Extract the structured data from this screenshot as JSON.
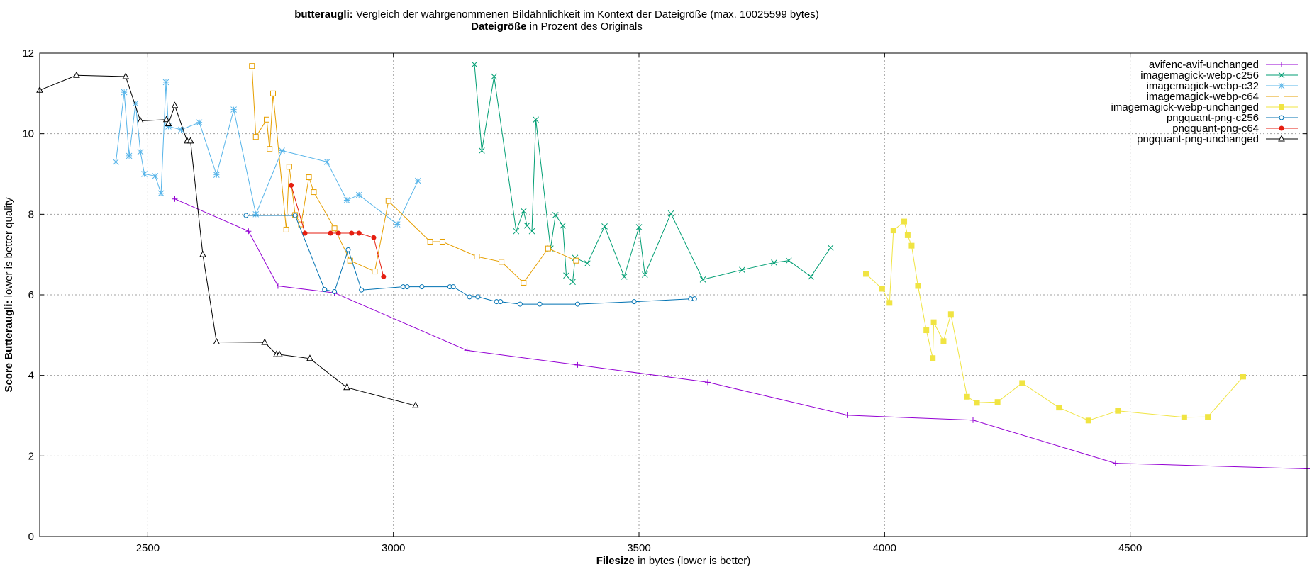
{
  "titles": {
    "line1_bold": "butteraugli:",
    "line1_rest": " Vergleich der wahrgenommenen Bildähnlichkeit im Kontext der Dateigröße (max. 10025599 bytes)",
    "line2_bold": "Dateigröße",
    "line2_rest": " in Prozent des Originals"
  },
  "axes": {
    "xlabel_bold": "Filesize",
    "xlabel_rest": " in bytes (lower is better)",
    "ylabel_bold": "Score Butteraugli:",
    "ylabel_rest": " lower is better quality"
  },
  "chart_data": {
    "type": "line",
    "title": "butteraugli: Vergleich der wahrgenommenen Bildähnlichkeit im Kontext der Dateigröße (max. 10025599 bytes)",
    "subtitle": "Dateigröße in Prozent des Originals",
    "xlabel": "Filesize in bytes (lower is better)",
    "ylabel": "Score Butteraugli: lower is better quality",
    "xlim": [
      2280,
      4860
    ],
    "ylim": [
      0,
      12
    ],
    "xticks": [
      2500,
      3000,
      3500,
      4000,
      4500
    ],
    "yticks": [
      0,
      2,
      4,
      6,
      8,
      10,
      12
    ],
    "grid": true,
    "legend_position": "top-right",
    "series": [
      {
        "name": "avifenc-avif-unchanged",
        "color": "#9400d3",
        "marker": "plus",
        "points": [
          [
            2555,
            8.38
          ],
          [
            2705,
            7.58
          ],
          [
            2765,
            6.22
          ],
          [
            2880,
            6.05
          ],
          [
            3150,
            4.62
          ],
          [
            3375,
            4.26
          ],
          [
            3640,
            3.83
          ],
          [
            3925,
            3.01
          ],
          [
            4180,
            2.89
          ],
          [
            4470,
            1.82
          ],
          [
            4860,
            1.68
          ]
        ]
      },
      {
        "name": "imagemagick-webp-c256",
        "color": "#009e73",
        "marker": "cross",
        "points": [
          [
            3165,
            11.72
          ],
          [
            3180,
            9.58
          ],
          [
            3205,
            11.42
          ],
          [
            3250,
            7.58
          ],
          [
            3265,
            8.08
          ],
          [
            3272,
            7.72
          ],
          [
            3282,
            7.58
          ],
          [
            3290,
            10.35
          ],
          [
            3320,
            7.15
          ],
          [
            3330,
            7.98
          ],
          [
            3345,
            7.72
          ],
          [
            3352,
            6.48
          ],
          [
            3365,
            6.32
          ],
          [
            3370,
            6.92
          ],
          [
            3395,
            6.78
          ],
          [
            3430,
            7.7
          ],
          [
            3470,
            6.45
          ],
          [
            3500,
            7.68
          ],
          [
            3512,
            6.5
          ],
          [
            3565,
            8.02
          ],
          [
            3630,
            6.38
          ],
          [
            3710,
            6.62
          ],
          [
            3775,
            6.8
          ],
          [
            3805,
            6.85
          ],
          [
            3850,
            6.45
          ],
          [
            3890,
            7.17
          ]
        ]
      },
      {
        "name": "imagemagick-webp-c32",
        "color": "#56b4e9",
        "marker": "star",
        "points": [
          [
            2435,
            9.3
          ],
          [
            2452,
            11.03
          ],
          [
            2462,
            9.45
          ],
          [
            2475,
            10.75
          ],
          [
            2485,
            9.55
          ],
          [
            2493,
            9.0
          ],
          [
            2515,
            8.95
          ],
          [
            2527,
            8.52
          ],
          [
            2537,
            11.28
          ],
          [
            2542,
            10.18
          ],
          [
            2568,
            10.1
          ],
          [
            2605,
            10.28
          ],
          [
            2640,
            8.98
          ],
          [
            2675,
            10.6
          ],
          [
            2720,
            8.0
          ],
          [
            2773,
            9.58
          ],
          [
            2865,
            9.3
          ],
          [
            2905,
            8.35
          ],
          [
            2930,
            8.48
          ],
          [
            3008,
            7.75
          ],
          [
            3050,
            8.83
          ]
        ]
      },
      {
        "name": "imagemagick-webp-c64",
        "color": "#e69f00",
        "marker": "square",
        "points": [
          [
            2712,
            11.68
          ],
          [
            2720,
            9.92
          ],
          [
            2742,
            10.35
          ],
          [
            2748,
            9.62
          ],
          [
            2755,
            11.0
          ],
          [
            2782,
            7.62
          ],
          [
            2788,
            9.18
          ],
          [
            2800,
            7.98
          ],
          [
            2812,
            7.75
          ],
          [
            2828,
            8.92
          ],
          [
            2838,
            8.55
          ],
          [
            2880,
            7.65
          ],
          [
            2912,
            6.85
          ],
          [
            2962,
            6.58
          ],
          [
            2990,
            8.33
          ],
          [
            3075,
            7.32
          ],
          [
            3100,
            7.32
          ],
          [
            3170,
            6.95
          ],
          [
            3220,
            6.82
          ],
          [
            3265,
            6.3
          ],
          [
            3315,
            7.15
          ],
          [
            3372,
            6.85
          ]
        ]
      },
      {
        "name": "imagemagick-webp-unchanged",
        "color": "#f0e442",
        "marker": "filled-square",
        "points": [
          [
            3962,
            6.52
          ],
          [
            3995,
            6.15
          ],
          [
            4010,
            5.8
          ],
          [
            4018,
            7.6
          ],
          [
            4040,
            7.82
          ],
          [
            4047,
            7.48
          ],
          [
            4055,
            7.22
          ],
          [
            4068,
            6.22
          ],
          [
            4085,
            5.12
          ],
          [
            4098,
            4.43
          ],
          [
            4100,
            5.32
          ],
          [
            4120,
            4.85
          ],
          [
            4135,
            5.52
          ],
          [
            4168,
            3.47
          ],
          [
            4188,
            3.32
          ],
          [
            4230,
            3.34
          ],
          [
            4280,
            3.81
          ],
          [
            4355,
            3.2
          ],
          [
            4415,
            2.88
          ],
          [
            4475,
            3.12
          ],
          [
            4610,
            2.96
          ],
          [
            4658,
            2.97
          ],
          [
            4730,
            3.97
          ]
        ]
      },
      {
        "name": "pngquant-png-c256",
        "color": "#0072b2",
        "marker": "circle",
        "points": [
          [
            2700,
            7.97
          ],
          [
            2800,
            7.97
          ],
          [
            2860,
            6.13
          ],
          [
            2880,
            6.08
          ],
          [
            2908,
            7.12
          ],
          [
            2935,
            6.12
          ],
          [
            3020,
            6.2
          ],
          [
            3028,
            6.2
          ],
          [
            3058,
            6.2
          ],
          [
            3115,
            6.2
          ],
          [
            3122,
            6.2
          ],
          [
            3155,
            5.95
          ],
          [
            3172,
            5.95
          ],
          [
            3210,
            5.83
          ],
          [
            3218,
            5.83
          ],
          [
            3258,
            5.77
          ],
          [
            3298,
            5.77
          ],
          [
            3375,
            5.77
          ],
          [
            3490,
            5.83
          ],
          [
            3605,
            5.9
          ],
          [
            3613,
            5.9
          ]
        ]
      },
      {
        "name": "pngquant-png-c64",
        "color": "#e51e10",
        "marker": "filled-circle",
        "points": [
          [
            2792,
            8.72
          ],
          [
            2820,
            7.53
          ],
          [
            2872,
            7.53
          ],
          [
            2888,
            7.53
          ],
          [
            2915,
            7.53
          ],
          [
            2930,
            7.53
          ],
          [
            2960,
            7.42
          ],
          [
            2980,
            6.45
          ]
        ]
      },
      {
        "name": "pngquant-png-unchanged",
        "color": "#000000",
        "marker": "triangle",
        "points": [
          [
            2280,
            11.08
          ],
          [
            2355,
            11.45
          ],
          [
            2455,
            11.42
          ],
          [
            2485,
            10.32
          ],
          [
            2538,
            10.35
          ],
          [
            2542,
            10.25
          ],
          [
            2555,
            10.7
          ],
          [
            2580,
            9.82
          ],
          [
            2587,
            9.82
          ],
          [
            2612,
            7.0
          ],
          [
            2640,
            4.83
          ],
          [
            2738,
            4.82
          ],
          [
            2762,
            4.52
          ],
          [
            2768,
            4.52
          ],
          [
            2830,
            4.42
          ],
          [
            2905,
            3.7
          ],
          [
            3045,
            3.25
          ]
        ]
      }
    ]
  }
}
